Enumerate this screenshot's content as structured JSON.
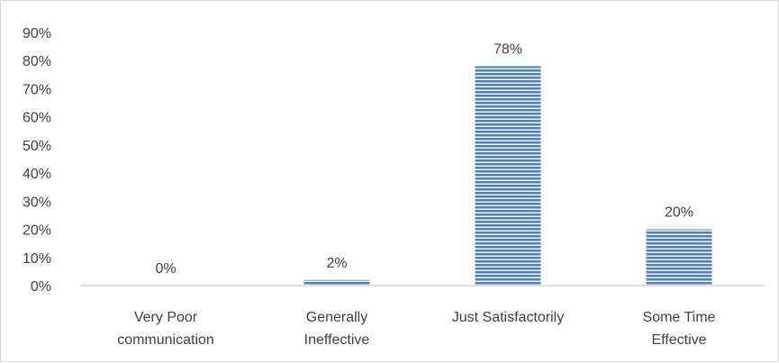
{
  "chart_data": {
    "type": "bar",
    "title": "",
    "xlabel": "",
    "ylabel": "",
    "categories": [
      [
        "Very Poor",
        "communication"
      ],
      [
        "Generally",
        "Ineffective"
      ],
      [
        "Just Satisfactorily"
      ],
      [
        "Some Time",
        "Effective"
      ]
    ],
    "values": [
      0,
      2,
      78,
      20
    ],
    "data_labels": [
      "0%",
      "2%",
      "78%",
      "20%"
    ],
    "ylim": [
      0,
      90
    ],
    "yticks": [
      0,
      10,
      20,
      30,
      40,
      50,
      60,
      70,
      80,
      90
    ],
    "ytick_labels": [
      "0%",
      "10%",
      "20%",
      "30%",
      "40%",
      "50%",
      "60%",
      "70%",
      "80%",
      "90%"
    ],
    "grid": false,
    "legend": false,
    "colors": {
      "bar_fill": "#4f81bd",
      "bar_stripe": "#ffffff",
      "axis": "#bfbfbf",
      "text": "#404040"
    }
  }
}
